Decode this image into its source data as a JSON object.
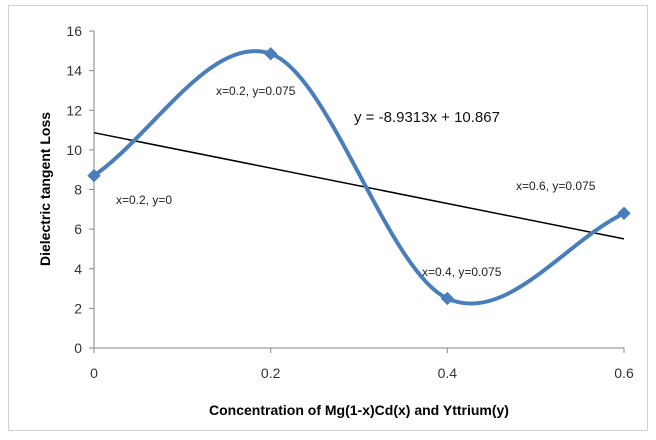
{
  "chart_data": {
    "type": "line",
    "title": "",
    "xlabel": "Concentration of Mg(1-x)Cd(x) and Yttrium(y)",
    "ylabel": "Dielectric tangent Loss",
    "xlim": [
      0,
      0.6
    ],
    "ylim": [
      0,
      16
    ],
    "xticks": [
      "0",
      "0.2",
      "0.4",
      "0.6"
    ],
    "yticks": [
      "0",
      "2",
      "4",
      "6",
      "8",
      "10",
      "12",
      "14",
      "16"
    ],
    "grid": false,
    "legend": "none",
    "series": [
      {
        "style": "smoothed line with diamond markers",
        "color": "#4a7ebb",
        "x": [
          0,
          0.2,
          0.4,
          0.6
        ],
        "y": [
          8.7,
          14.85,
          2.5,
          6.8
        ],
        "point_labels": [
          "x=0.2, y=0",
          "x=0.2, y=0.075",
          "x=0.4, y=0.075",
          "x=0.6, y=0.075"
        ]
      }
    ],
    "trendline": {
      "type": "linear",
      "color": "#000000",
      "slope": -8.9313,
      "intercept": 10.867,
      "x_range": [
        0,
        0.6
      ],
      "equation_label": "y = -8.9313x + 10.867"
    }
  }
}
